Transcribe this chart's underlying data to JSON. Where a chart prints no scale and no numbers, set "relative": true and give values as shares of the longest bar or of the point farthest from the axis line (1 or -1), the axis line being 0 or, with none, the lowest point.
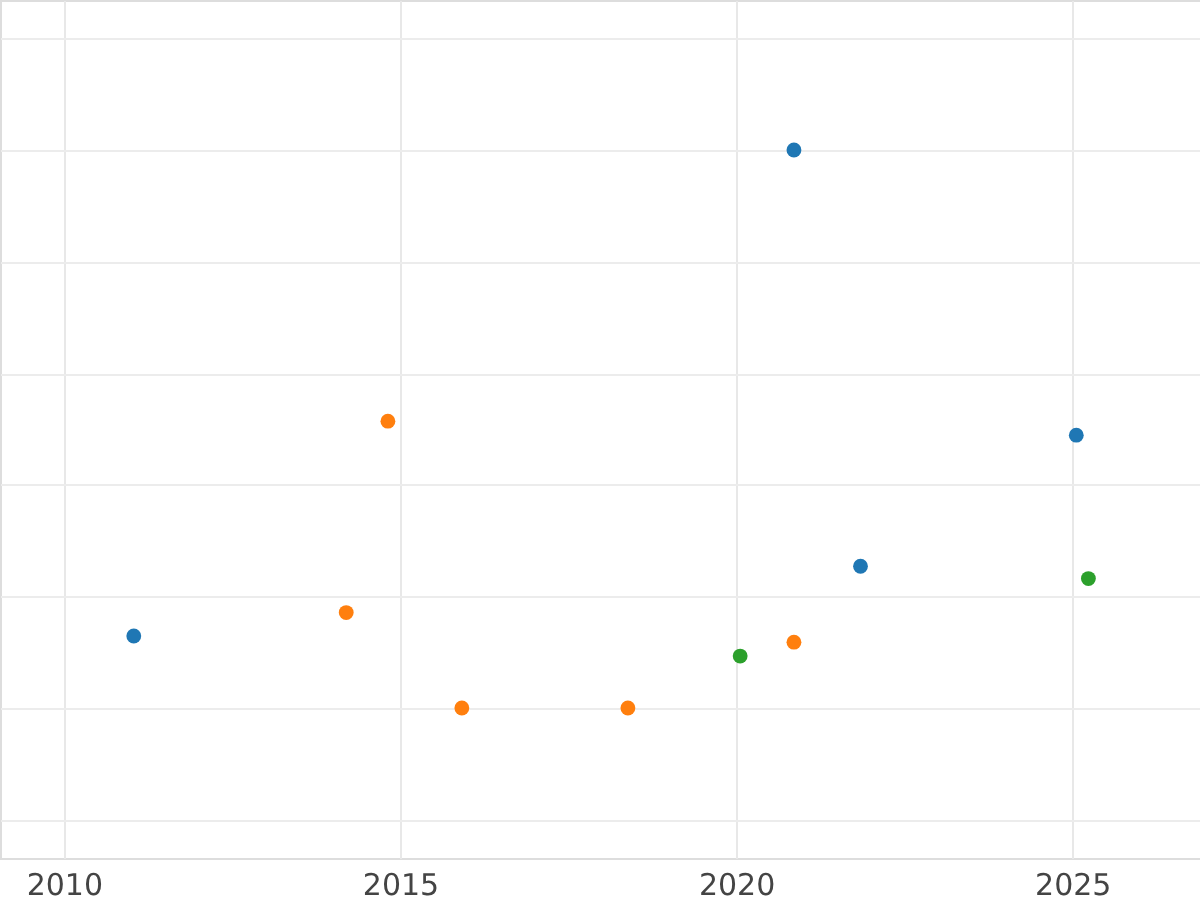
{
  "chart_data": {
    "type": "scatter",
    "relative": true,
    "xlim": [
      2009.05,
      2026.9
    ],
    "xticks": [
      2010,
      2015,
      2020,
      2025
    ],
    "grid": true,
    "legend": false,
    "marker": "circle",
    "series": [
      {
        "color": "#1f77b4",
        "x": [
          2011.04,
          2020.86,
          2021.85,
          2025.06
        ],
        "values": [
          0.129,
          1,
          0.254,
          0.489
        ]
      },
      {
        "color": "#ff7f0e",
        "x": [
          2014.82,
          2014.2,
          2015.92,
          2018.39,
          2020.86
        ],
        "values": [
          0.514,
          0.171,
          0,
          0,
          0.118
        ]
      },
      {
        "color": "#2ca02c",
        "x": [
          2020.06,
          2025.24
        ],
        "values": [
          0.093,
          0.232
        ]
      }
    ]
  }
}
